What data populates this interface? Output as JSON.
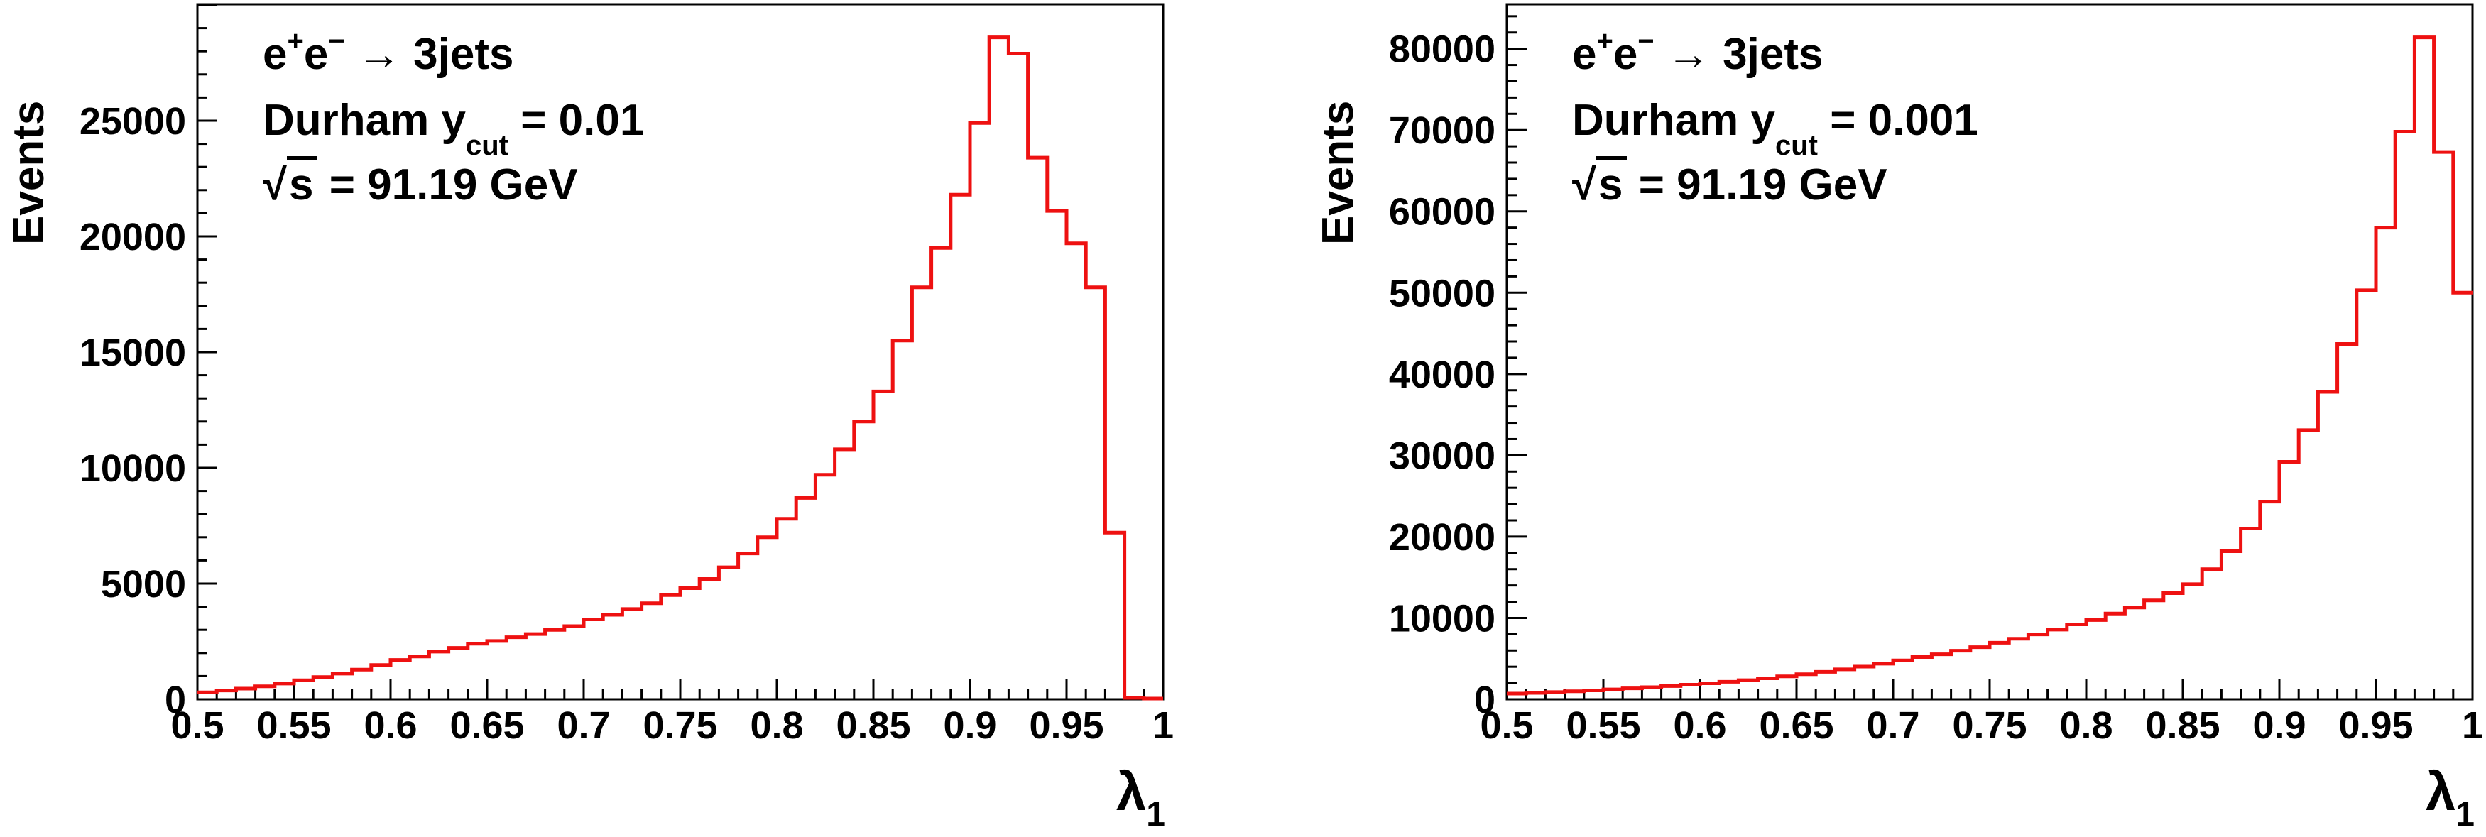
{
  "page": {
    "background": "#ffffff"
  },
  "colors": {
    "histogram_line": "#ee1111",
    "axis": "#000000",
    "text": "#000000"
  },
  "plots": [
    {
      "pad": "left",
      "y_axis_title": "Events",
      "x_axis_title_base": "λ",
      "x_axis_title_sub": "1",
      "annotation": {
        "e1": "e",
        "sup_plus": "+",
        "e2": "e",
        "sup_minus": "−",
        "arrow_rest": " → 3jets",
        "line2_prefix": "Durham y",
        "line2_sub": "cut",
        "line2_suffix": " = 0.01",
        "line3_sqrt": "√",
        "line3_s": "s",
        "line3_suffix": " = 91.19 GeV"
      },
      "x_tick_labels": [
        "0.5",
        "0.55",
        "0.6",
        "0.65",
        "0.7",
        "0.75",
        "0.8",
        "0.85",
        "0.9",
        "0.95",
        "1"
      ],
      "y_tick_labels": [
        "0",
        "5000",
        "10000",
        "15000",
        "20000",
        "25000"
      ]
    },
    {
      "pad": "right",
      "y_axis_title": "Events",
      "x_axis_title_base": "λ",
      "x_axis_title_sub": "1",
      "annotation": {
        "e1": "e",
        "sup_plus": "+",
        "e2": "e",
        "sup_minus": "−",
        "arrow_rest": " → 3jets",
        "line2_prefix": "Durham y",
        "line2_sub": "cut",
        "line2_suffix": " = 0.001",
        "line3_sqrt": "√",
        "line3_s": "s",
        "line3_suffix": " = 91.19 GeV"
      },
      "x_tick_labels": [
        "0.5",
        "0.55",
        "0.6",
        "0.65",
        "0.7",
        "0.75",
        "0.8",
        "0.85",
        "0.9",
        "0.95",
        "1"
      ],
      "y_tick_labels": [
        "0",
        "10000",
        "20000",
        "30000",
        "40000",
        "50000",
        "60000",
        "70000",
        "80000"
      ]
    }
  ],
  "chart_data": [
    {
      "type": "bar",
      "style": "step-histogram",
      "pad": "left",
      "title": "",
      "xlabel": "λ₁",
      "ylabel": "Events",
      "annotations": [
        "e⁺e⁻ → 3jets",
        "Durham y_cut = 0.01",
        "√s = 91.19 GeV"
      ],
      "legend": null,
      "grid": false,
      "line_color": "#ee1111",
      "xlim": [
        0.5,
        1.0
      ],
      "ylim": [
        0,
        30030
      ],
      "bin_start": 0.5,
      "bin_width": 0.01,
      "n_bins": 50,
      "x_ticks": [
        0.5,
        0.55,
        0.6,
        0.65,
        0.7,
        0.75,
        0.8,
        0.85,
        0.9,
        0.95,
        1.0
      ],
      "y_ticks": [
        0,
        5000,
        10000,
        15000,
        20000,
        25000
      ],
      "y_major_tick_step": 5000,
      "y_minor_tick_step": 1000,
      "values": [
        300,
        380,
        460,
        560,
        680,
        820,
        960,
        1110,
        1280,
        1480,
        1700,
        1850,
        2060,
        2220,
        2400,
        2520,
        2680,
        2820,
        3000,
        3160,
        3450,
        3650,
        3900,
        4150,
        4500,
        4800,
        5200,
        5700,
        6300,
        7000,
        7800,
        8700,
        9700,
        10800,
        12000,
        13300,
        15500,
        17800,
        19500,
        21800,
        24900,
        28600,
        27900,
        23400,
        21100,
        19700,
        17800,
        7200,
        60,
        30
      ]
    },
    {
      "type": "bar",
      "style": "step-histogram",
      "pad": "right",
      "title": "",
      "xlabel": "λ₁",
      "ylabel": "Events",
      "annotations": [
        "e⁺e⁻ → 3jets",
        "Durham y_cut = 0.001",
        "√s = 91.19 GeV"
      ],
      "legend": null,
      "grid": false,
      "line_color": "#ee1111",
      "xlim": [
        0.5,
        1.0
      ],
      "ylim": [
        0,
        85470
      ],
      "bin_start": 0.5,
      "bin_width": 0.01,
      "n_bins": 50,
      "x_ticks": [
        0.5,
        0.55,
        0.6,
        0.65,
        0.7,
        0.75,
        0.8,
        0.85,
        0.9,
        0.95,
        1.0
      ],
      "y_ticks": [
        0,
        10000,
        20000,
        30000,
        40000,
        50000,
        60000,
        70000,
        80000
      ],
      "y_major_tick_step": 10000,
      "y_minor_tick_step": 2000,
      "values": [
        700,
        790,
        880,
        980,
        1090,
        1210,
        1340,
        1480,
        1630,
        1790,
        1960,
        2150,
        2350,
        2570,
        2820,
        3080,
        3370,
        3680,
        4020,
        4380,
        4780,
        5200,
        5530,
        5970,
        6410,
        6950,
        7440,
        7980,
        8570,
        9210,
        9750,
        10540,
        11280,
        12160,
        13050,
        14150,
        16000,
        18200,
        21000,
        24300,
        29200,
        33100,
        37800,
        43700,
        50300,
        58000,
        69800,
        81400,
        67300,
        50000
      ]
    }
  ]
}
